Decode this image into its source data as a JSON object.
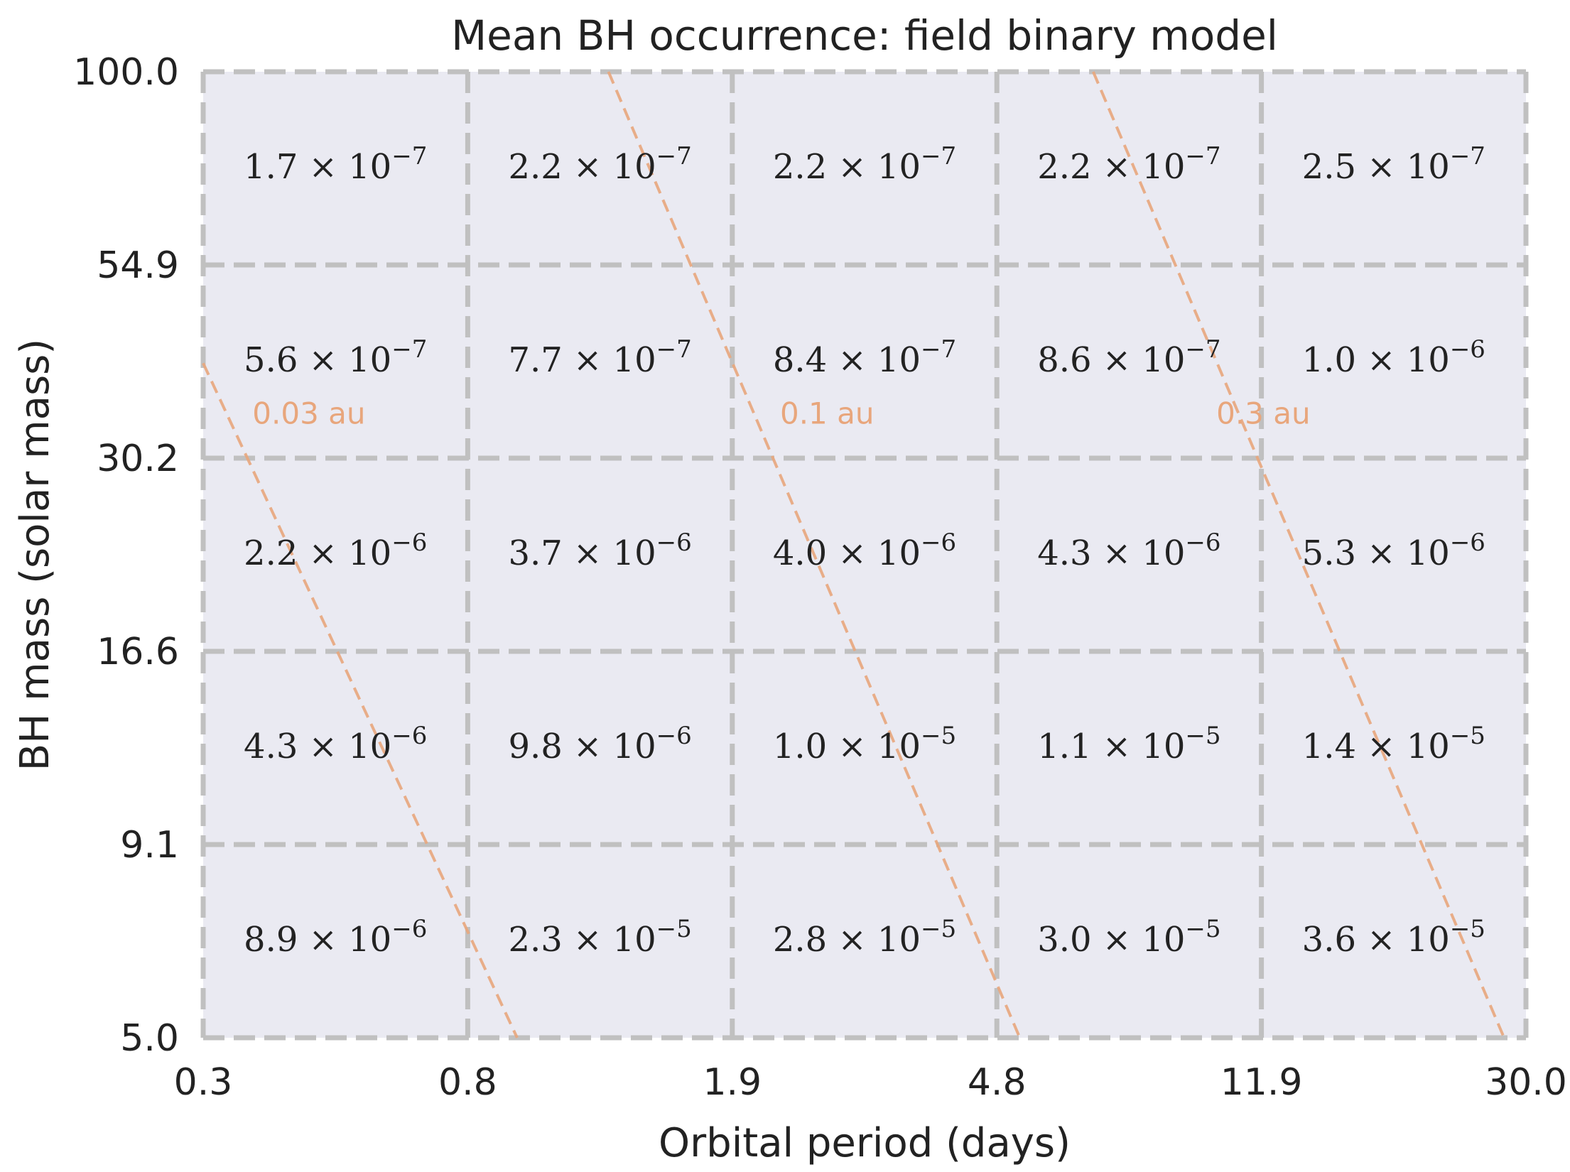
{
  "chart_data": {
    "type": "heatmap",
    "title": "Mean BH occurrence: field binary model",
    "xlabel": "Orbital period (days)",
    "ylabel": "BH mass (solar mass)",
    "x_edges": [
      0.3,
      0.8,
      1.9,
      4.8,
      11.9,
      30.0
    ],
    "y_edges": [
      5.0,
      9.1,
      16.6,
      30.2,
      54.9,
      100.0
    ],
    "x_scale": "log",
    "y_scale": "log",
    "x_tick_labels": [
      "0.3",
      "0.8",
      "1.9",
      "4.8",
      "11.9",
      "30.0"
    ],
    "y_tick_labels": [
      "5.0",
      "9.1",
      "16.6",
      "30.2",
      "54.9",
      "100.0"
    ],
    "grid": true,
    "cells": [
      {
        "row": 0,
        "col": 0,
        "mantissa": "1.7",
        "exponent": "−7"
      },
      {
        "row": 0,
        "col": 1,
        "mantissa": "2.2",
        "exponent": "−7"
      },
      {
        "row": 0,
        "col": 2,
        "mantissa": "2.2",
        "exponent": "−7"
      },
      {
        "row": 0,
        "col": 3,
        "mantissa": "2.2",
        "exponent": "−7"
      },
      {
        "row": 0,
        "col": 4,
        "mantissa": "2.5",
        "exponent": "−7"
      },
      {
        "row": 1,
        "col": 0,
        "mantissa": "5.6",
        "exponent": "−7"
      },
      {
        "row": 1,
        "col": 1,
        "mantissa": "7.7",
        "exponent": "−7"
      },
      {
        "row": 1,
        "col": 2,
        "mantissa": "8.4",
        "exponent": "−7"
      },
      {
        "row": 1,
        "col": 3,
        "mantissa": "8.6",
        "exponent": "−7"
      },
      {
        "row": 1,
        "col": 4,
        "mantissa": "1.0",
        "exponent": "−6"
      },
      {
        "row": 2,
        "col": 0,
        "mantissa": "2.2",
        "exponent": "−6"
      },
      {
        "row": 2,
        "col": 1,
        "mantissa": "3.7",
        "exponent": "−6"
      },
      {
        "row": 2,
        "col": 2,
        "mantissa": "4.0",
        "exponent": "−6"
      },
      {
        "row": 2,
        "col": 3,
        "mantissa": "4.3",
        "exponent": "−6"
      },
      {
        "row": 2,
        "col": 4,
        "mantissa": "5.3",
        "exponent": "−6"
      },
      {
        "row": 3,
        "col": 0,
        "mantissa": "4.3",
        "exponent": "−6"
      },
      {
        "row": 3,
        "col": 1,
        "mantissa": "9.8",
        "exponent": "−6"
      },
      {
        "row": 3,
        "col": 2,
        "mantissa": "1.0",
        "exponent": "−5"
      },
      {
        "row": 3,
        "col": 3,
        "mantissa": "1.1",
        "exponent": "−5"
      },
      {
        "row": 3,
        "col": 4,
        "mantissa": "1.4",
        "exponent": "−5"
      },
      {
        "row": 4,
        "col": 0,
        "mantissa": "8.9",
        "exponent": "−6"
      },
      {
        "row": 4,
        "col": 1,
        "mantissa": "2.3",
        "exponent": "−5"
      },
      {
        "row": 4,
        "col": 2,
        "mantissa": "2.8",
        "exponent": "−5"
      },
      {
        "row": 4,
        "col": 3,
        "mantissa": "3.0",
        "exponent": "−5"
      },
      {
        "row": 4,
        "col": 4,
        "mantissa": "3.6",
        "exponent": "−5"
      }
    ],
    "separation_lines": [
      {
        "label": "0.03 au",
        "points": [
          [
            0.3,
            40.5
          ],
          [
            0.895,
            5.0
          ]
        ]
      },
      {
        "label": "0.1 au",
        "points": [
          [
            1.23,
            100.0
          ],
          [
            5.15,
            5.0
          ]
        ]
      },
      {
        "label": "0.3 au",
        "points": [
          [
            6.65,
            100.0
          ],
          [
            27.8,
            5.0
          ]
        ]
      }
    ],
    "colors": {
      "plot_background": "#eaeaf2",
      "grid": "#c0c0c0",
      "separation_line": "#e8a67c",
      "text": "#222222"
    }
  }
}
